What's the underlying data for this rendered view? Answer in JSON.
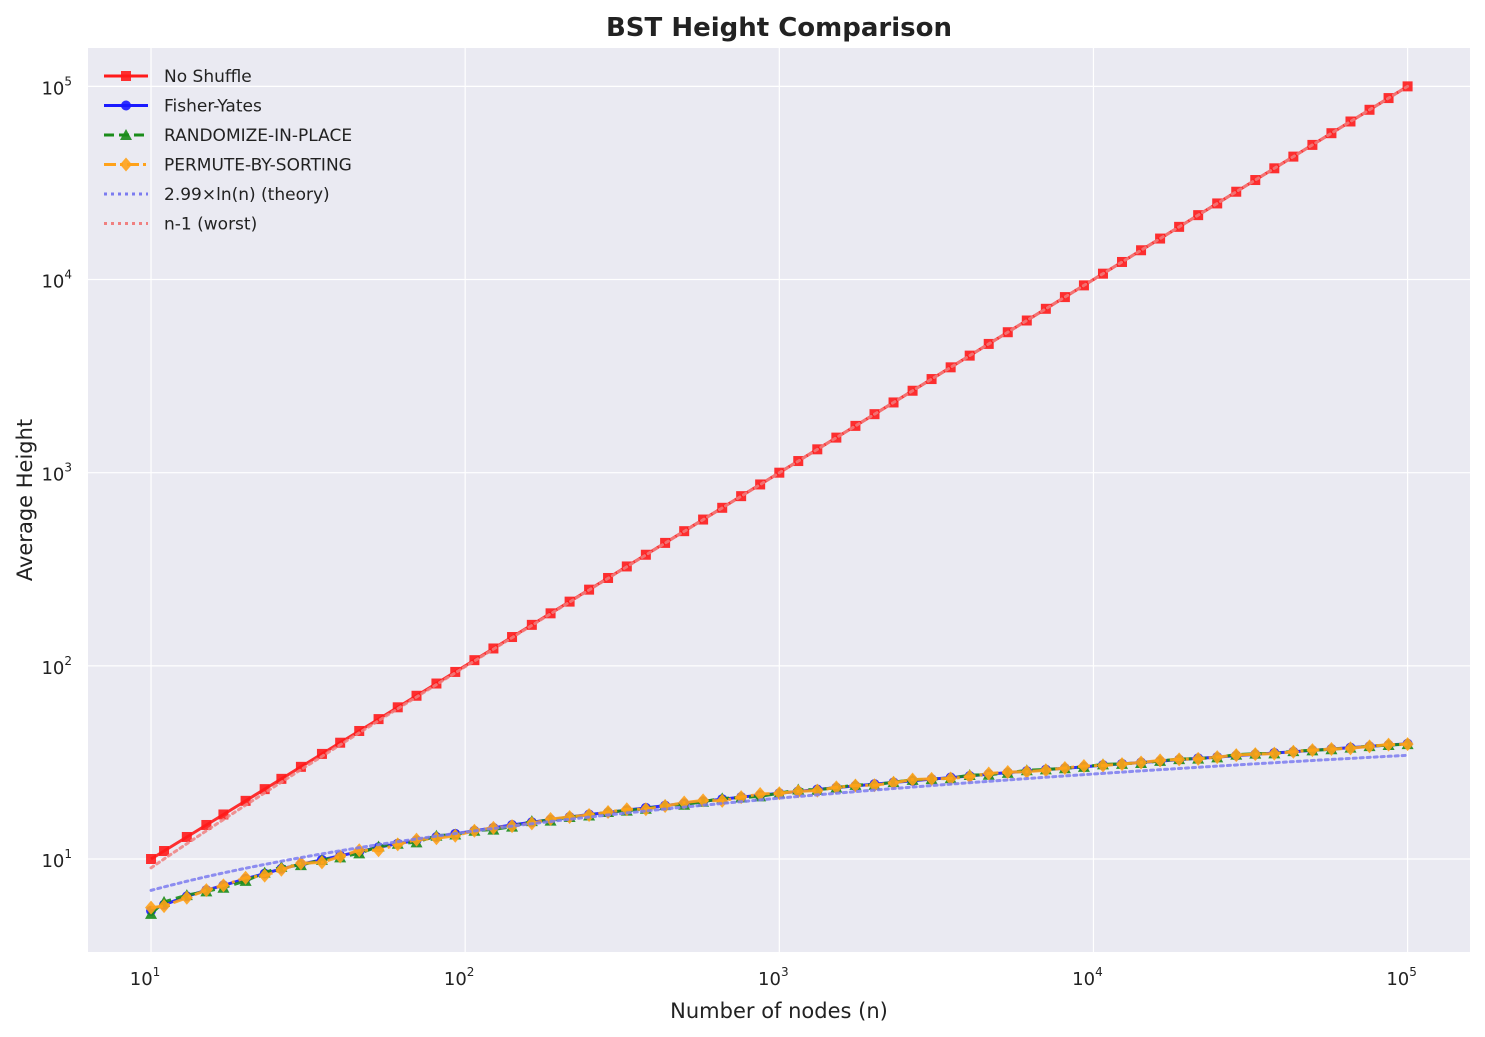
{
  "chart_data": {
    "type": "line",
    "title": "BST Height Comparison",
    "xlabel": "Number of nodes (n)",
    "ylabel": "Average Height",
    "x_scale": "log",
    "y_scale": "log",
    "xlim": [
      6.3,
      158000
    ],
    "ylim": [
      3.3,
      158000
    ],
    "grid": true,
    "legend_position": "top-left",
    "x_ticks": [
      {
        "base": "10",
        "exp": "1",
        "value": 10
      },
      {
        "base": "10",
        "exp": "2",
        "value": 100
      },
      {
        "base": "10",
        "exp": "3",
        "value": 1000
      },
      {
        "base": "10",
        "exp": "4",
        "value": 10000
      },
      {
        "base": "10",
        "exp": "5",
        "value": 100000
      }
    ],
    "y_ticks": [
      {
        "base": "10",
        "exp": "1",
        "value": 10
      },
      {
        "base": "10",
        "exp": "2",
        "value": 100
      },
      {
        "base": "10",
        "exp": "3",
        "value": 1000
      },
      {
        "base": "10",
        "exp": "4",
        "value": 10000
      },
      {
        "base": "10",
        "exp": "5",
        "value": 100000
      }
    ],
    "x": [
      10,
      11,
      13,
      15,
      17,
      20,
      23,
      26,
      30,
      35,
      40,
      46,
      53,
      61,
      70,
      81,
      93,
      107,
      123,
      141,
      163,
      187,
      215,
      248,
      285,
      327,
      376,
      433,
      498,
      572,
      658,
      756,
      869,
      1000,
      1149,
      1321,
      1519,
      1747,
      2009,
      2310,
      2656,
      3053,
      3511,
      4037,
      4641,
      5336,
      6135,
      7054,
      8111,
      9326,
      10723,
      12328,
      14175,
      16298,
      18738,
      21544,
      24771,
      28480,
      32745,
      37649,
      43287,
      49770,
      57223,
      65793,
      75646,
      86975,
      100000
    ],
    "series": [
      {
        "name": "No Shuffle",
        "color": "#ff1a1a",
        "line_style": "solid",
        "marker": "square",
        "values": [
          10,
          11,
          13,
          15,
          17,
          20,
          23,
          26,
          30,
          35,
          40,
          46,
          53,
          61,
          70,
          81,
          93,
          107,
          123,
          141,
          163,
          187,
          215,
          248,
          285,
          327,
          376,
          433,
          498,
          572,
          658,
          756,
          869,
          1000,
          1149,
          1321,
          1519,
          1747,
          2009,
          2310,
          2656,
          3053,
          3511,
          4037,
          4641,
          5336,
          6135,
          7054,
          8111,
          9326,
          10723,
          12328,
          14175,
          16298,
          18738,
          21544,
          24771,
          28480,
          32745,
          37649,
          43287,
          49770,
          57223,
          65793,
          75646,
          86975,
          100000
        ]
      },
      {
        "name": "Fisher-Yates",
        "color": "#1a1aff",
        "line_style": "solid",
        "marker": "circle",
        "values": [
          5.4,
          5.8,
          6.4,
          6.9,
          7.3,
          7.9,
          8.4,
          8.9,
          9.4,
          9.9,
          10.4,
          10.9,
          11.5,
          12,
          12.5,
          13,
          13.5,
          14,
          14.5,
          15,
          15.5,
          16,
          16.5,
          17,
          17.4,
          17.9,
          18.4,
          18.9,
          19.4,
          19.9,
          20.4,
          20.9,
          21.4,
          21.9,
          22.4,
          22.9,
          23.4,
          23.9,
          24.4,
          24.9,
          25.4,
          25.9,
          26.4,
          26.9,
          27.5,
          28,
          28.5,
          29,
          29.5,
          30,
          30.6,
          31.1,
          31.6,
          32.1,
          32.7,
          33.2,
          33.7,
          34.3,
          34.8,
          35.4,
          35.9,
          36.5,
          37.1,
          37.7,
          38.3,
          38.9,
          39.5
        ]
      },
      {
        "name": "RANDOMIZE-IN-PLACE",
        "color": "#1a8c1a",
        "line_style": "dashed",
        "marker": "triangle",
        "values": [
          5.2,
          6,
          6.5,
          6.8,
          7.1,
          7.7,
          8.5,
          9.1,
          9.3,
          9.9,
          10.2,
          10.7,
          11.6,
          12,
          12.2,
          13.2,
          13.4,
          14,
          14.2,
          14.7,
          15.7,
          15.8,
          16.5,
          16.8,
          17.5,
          17.8,
          18.2,
          19,
          19.1,
          19.8,
          20.6,
          20.8,
          21.1,
          21.9,
          22.9,
          22.8,
          23.4,
          24.2,
          24.2,
          25,
          25.7,
          25.9,
          26.2,
          27.2,
          27.3,
          27.9,
          28.8,
          29.1,
          29.5,
          30,
          30.9,
          31.1,
          31.4,
          32.2,
          32.9,
          33.1,
          33.6,
          34.7,
          35.1,
          35.2,
          36.2,
          36.5,
          37,
          37.7,
          38.4,
          38.9,
          39.3
        ]
      },
      {
        "name": "PERMUTE-BY-SORTING",
        "color": "#ffa21a",
        "line_style": "dashdot",
        "marker": "diamond",
        "values": [
          5.6,
          5.7,
          6.3,
          6.9,
          7.3,
          8,
          8.2,
          8.8,
          9.5,
          9.6,
          10.3,
          11.1,
          11.1,
          11.9,
          12.6,
          12.8,
          13.2,
          14,
          14.5,
          14.8,
          15.3,
          16.1,
          16.5,
          16.9,
          17.5,
          18.1,
          18.1,
          18.8,
          19.6,
          20.1,
          20,
          20.9,
          21.7,
          21.9,
          22.4,
          22.6,
          23.5,
          24,
          24.1,
          24.8,
          25.8,
          26,
          26.1,
          26.7,
          27.7,
          28.2,
          28.3,
          28.8,
          29.6,
          30.3,
          30.5,
          31,
          31.6,
          32.4,
          32.8,
          33,
          33.7,
          34.5,
          34.9,
          35.1,
          35.9,
          36.6,
          37.1,
          37.4,
          38.3,
          39.1,
          39.3
        ]
      },
      {
        "name": "2.99×ln(n) (theory)",
        "color": "#7b7bf0",
        "line_style": "dotted",
        "marker": "none",
        "values": [
          6.88,
          7.17,
          7.67,
          8.1,
          8.47,
          8.96,
          9.37,
          9.74,
          10.17,
          10.63,
          11.03,
          11.45,
          11.87,
          12.29,
          12.7,
          13.14,
          13.55,
          13.97,
          14.39,
          14.8,
          15.23,
          15.64,
          16.06,
          16.49,
          16.9,
          17.31,
          17.73,
          18.15,
          18.57,
          18.98,
          19.4,
          19.81,
          20.23,
          20.65,
          21.07,
          21.48,
          21.9,
          22.32,
          22.74,
          23.16,
          23.57,
          23.99,
          24.41,
          24.83,
          25.24,
          25.66,
          26.08,
          26.5,
          26.92,
          27.34,
          27.75,
          28.17,
          28.59,
          29.01,
          29.42,
          29.84,
          30.26,
          30.68,
          31.1,
          31.51,
          31.93,
          32.35,
          32.77,
          33.18,
          33.6,
          34.02,
          34.42
        ]
      },
      {
        "name": "n-1 (worst)",
        "color": "#f08080",
        "line_style": "dotted",
        "marker": "none",
        "values": [
          9,
          10,
          12,
          14,
          16,
          19,
          22,
          25,
          29,
          34,
          39,
          45,
          52,
          60,
          69,
          80,
          92,
          106,
          122,
          140,
          162,
          186,
          214,
          247,
          284,
          326,
          375,
          432,
          497,
          571,
          657,
          755,
          868,
          999,
          1148,
          1320,
          1518,
          1746,
          2008,
          2309,
          2655,
          3052,
          3510,
          4036,
          4640,
          5335,
          6134,
          7053,
          8110,
          9325,
          10722,
          12327,
          14174,
          16297,
          18737,
          21543,
          24770,
          28479,
          32744,
          37648,
          43286,
          49769,
          57222,
          65792,
          75645,
          86974,
          99999
        ]
      }
    ]
  }
}
